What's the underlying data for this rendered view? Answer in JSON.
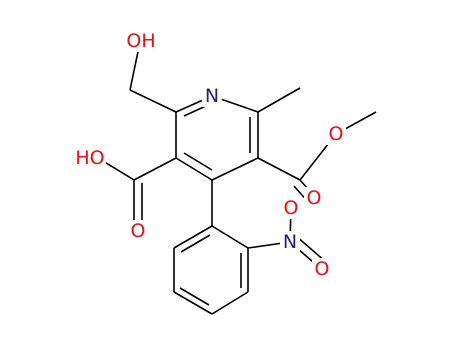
{
  "atoms": [
    {
      "label": "OH"
    },
    {
      "label": "N"
    },
    {
      "label": "HO"
    },
    {
      "label": "O"
    },
    {
      "label": "O"
    },
    {
      "label": "O"
    },
    {
      "label": "O"
    },
    {
      "label": "N"
    },
    {
      "label": "O"
    }
  ]
}
